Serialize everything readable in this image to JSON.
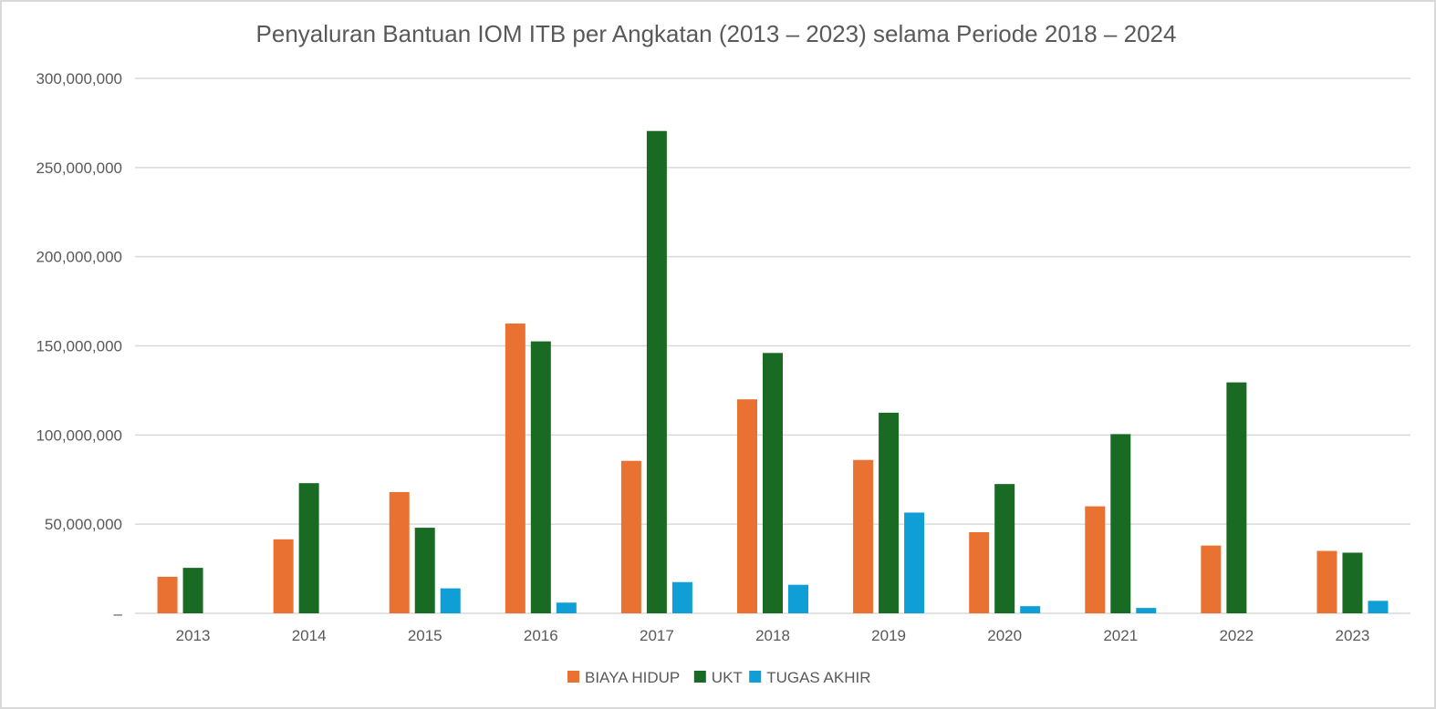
{
  "chart_data": {
    "type": "bar",
    "title": "Penyaluran Bantuan IOM ITB per Angkatan (2013 – 2023) selama Periode 2018 – 2024",
    "xlabel": "",
    "ylabel": "",
    "categories": [
      "2013",
      "2014",
      "2015",
      "2016",
      "2017",
      "2018",
      "2019",
      "2020",
      "2021",
      "2022",
      "2023"
    ],
    "series": [
      {
        "name": "BIAYA HIDUP",
        "color": "#e97132",
        "values": [
          20500000,
          41500000,
          68000000,
          162500000,
          85500000,
          120000000,
          86000000,
          45500000,
          60000000,
          38000000,
          35000000
        ]
      },
      {
        "name": "UKT",
        "color": "#196b24",
        "values": [
          25500000,
          73000000,
          48000000,
          152500000,
          270500000,
          146000000,
          112500000,
          72500000,
          100500000,
          129500000,
          34000000
        ]
      },
      {
        "name": "TUGAS AKHIR",
        "color": "#0f9ed5",
        "values": [
          0,
          0,
          14000000,
          6000000,
          17500000,
          16000000,
          56500000,
          4000000,
          3000000,
          0,
          7000000
        ]
      }
    ],
    "ylim": [
      0,
      300000000
    ],
    "yticks": [
      0,
      50000000,
      100000000,
      150000000,
      200000000,
      250000000,
      300000000
    ],
    "ytick_labels": [
      "–",
      "50,000,000",
      "100,000,000",
      "150,000,000",
      "200,000,000",
      "250,000,000",
      "300,000,000"
    ],
    "grid": true,
    "legend_position": "bottom"
  }
}
